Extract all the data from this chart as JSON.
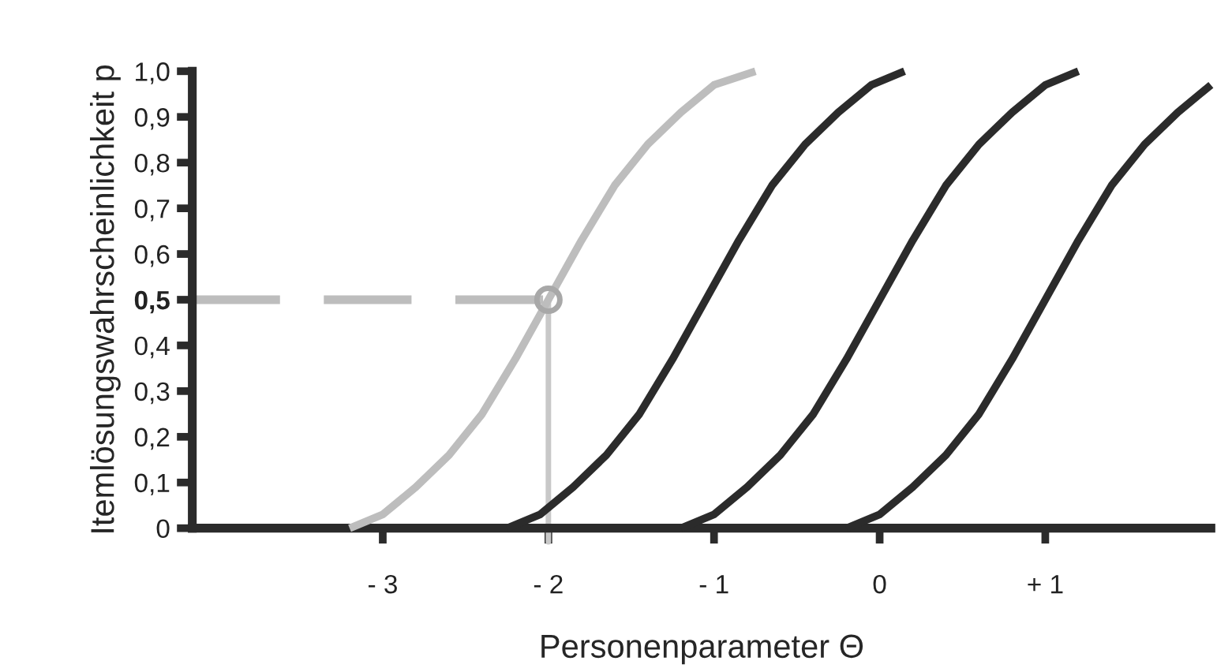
{
  "chart_data": {
    "type": "line",
    "xlabel": "Personenparameter Θ",
    "ylabel": "Itemlösungswahrscheinlichkeit p",
    "xlim": [
      -4.15,
      2.0
    ],
    "ylim": [
      0,
      1.0
    ],
    "xticks": [
      {
        "value": -3,
        "label": "- 3"
      },
      {
        "value": -2,
        "label": "- 2"
      },
      {
        "value": -1,
        "label": "- 1"
      },
      0,
      {
        "value": 1,
        "label": "+ 1"
      }
    ],
    "yticks": [
      0,
      {
        "value": 0.1,
        "label": "0,1"
      },
      {
        "value": 0.2,
        "label": "0,2"
      },
      {
        "value": 0.3,
        "label": "0,3"
      },
      {
        "value": 0.4,
        "label": "0,4"
      },
      {
        "value": 0.5,
        "label": "0,5"
      },
      {
        "value": 0.6,
        "label": "0,6"
      },
      {
        "value": 0.7,
        "label": "0,7"
      },
      {
        "value": 0.8,
        "label": "0,8"
      },
      {
        "value": 0.9,
        "label": "0,9"
      },
      {
        "value": 1.0,
        "label": "1,0"
      }
    ],
    "grid": false,
    "legend": false,
    "line_style": "solid",
    "series": [
      {
        "color": "#bdbdbd",
        "x": [
          -3.2,
          -3.0,
          -2.8,
          -2.6,
          -2.4,
          -2.2,
          -2.0,
          -1.8,
          -1.6,
          -1.4,
          -1.2,
          -1.0,
          -0.75
        ],
        "values": [
          0,
          0.03,
          0.09,
          0.16,
          0.25,
          0.37,
          0.5,
          0.63,
          0.75,
          0.84,
          0.91,
          0.97,
          1.0
        ]
      },
      {
        "color": "#2b2b2b",
        "x": [
          -2.25,
          -2.05,
          -1.85,
          -1.65,
          -1.45,
          -1.25,
          -1.05,
          -0.85,
          -0.65,
          -0.45,
          -0.25,
          -0.05,
          0.15
        ],
        "values": [
          0,
          0.03,
          0.09,
          0.16,
          0.25,
          0.37,
          0.5,
          0.63,
          0.75,
          0.84,
          0.91,
          0.97,
          1.0
        ]
      },
      {
        "color": "#2b2b2b",
        "x": [
          -1.2,
          -1.0,
          -0.8,
          -0.6,
          -0.4,
          -0.2,
          0.0,
          0.2,
          0.4,
          0.6,
          0.8,
          1.0,
          1.2
        ],
        "values": [
          0,
          0.03,
          0.09,
          0.16,
          0.25,
          0.37,
          0.5,
          0.63,
          0.75,
          0.84,
          0.91,
          0.97,
          1.0
        ]
      },
      {
        "color": "#2b2b2b",
        "x": [
          -0.2,
          0.0,
          0.2,
          0.4,
          0.6,
          0.8,
          1.0,
          1.2,
          1.4,
          1.6,
          1.8,
          2.0
        ],
        "values": [
          0,
          0.03,
          0.09,
          0.16,
          0.25,
          0.37,
          0.5,
          0.63,
          0.75,
          0.84,
          0.91,
          0.97
        ]
      },
      {
        "type": "scatter",
        "marker": "circle",
        "color": "#a8a8a8",
        "x": [
          -2.0
        ],
        "values": [
          0.5
        ]
      }
    ],
    "ref_lines": [
      {
        "axis": "y",
        "value": 0.5,
        "color": "#bdbdbd",
        "line_style": "dashed"
      },
      {
        "axis": "x",
        "value": -2,
        "color": "#c8c8c8",
        "line_style": "solid"
      }
    ]
  }
}
